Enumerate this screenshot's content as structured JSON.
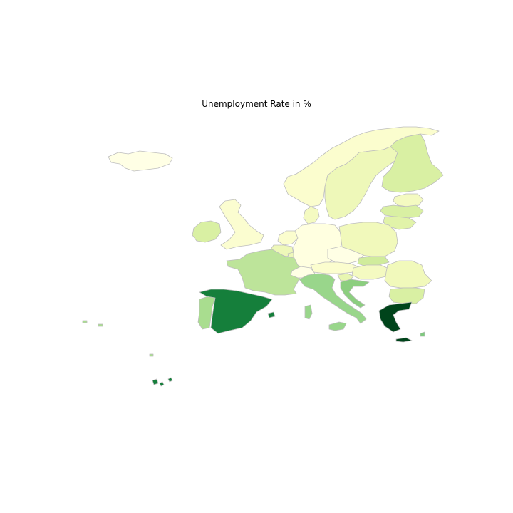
{
  "title": "Unemployment Rate in %",
  "map": {
    "type": "choropleth",
    "colormap": "YlGn",
    "border_color": "#bdbdbd",
    "regions": [
      {
        "name": "Iceland",
        "color": "#ffffe5"
      },
      {
        "name": "Norway",
        "color": "#fbfdce"
      },
      {
        "name": "Sweden",
        "color": "#eef8b9"
      },
      {
        "name": "Finland",
        "color": "#d9f0a3"
      },
      {
        "name": "Estonia",
        "color": "#f4fac1"
      },
      {
        "name": "Latvia",
        "color": "#d9f0a3"
      },
      {
        "name": "Lithuania",
        "color": "#e1f3a9"
      },
      {
        "name": "Ireland",
        "color": "#d9f0a3"
      },
      {
        "name": "United Kingdom",
        "color": "#fbfdd0"
      },
      {
        "name": "Denmark",
        "color": "#f4fac1"
      },
      {
        "name": "Netherlands",
        "color": "#fbfdce"
      },
      {
        "name": "Belgium",
        "color": "#eef8b9"
      },
      {
        "name": "Luxembourg",
        "color": "#eef8b9"
      },
      {
        "name": "Germany",
        "color": "#ffffe0"
      },
      {
        "name": "Poland",
        "color": "#f1f9bb"
      },
      {
        "name": "Czechia",
        "color": "#ffffe5"
      },
      {
        "name": "Slovakia",
        "color": "#d0ec9c"
      },
      {
        "name": "Austria",
        "color": "#fbfdce"
      },
      {
        "name": "Switzerland",
        "color": "#ffffe5"
      },
      {
        "name": "Hungary",
        "color": "#f4fac1"
      },
      {
        "name": "Slovenia",
        "color": "#e8f6b1"
      },
      {
        "name": "Croatia",
        "color": "#8cce7f"
      },
      {
        "name": "Romania",
        "color": "#f1f9bb"
      },
      {
        "name": "Bulgaria",
        "color": "#d9f0a3"
      },
      {
        "name": "France",
        "color": "#bde49a"
      },
      {
        "name": "Italy",
        "color": "#99d68b"
      },
      {
        "name": "Portugal",
        "color": "#a9dd8f"
      },
      {
        "name": "Spain",
        "color": "#157f3b"
      },
      {
        "name": "Greece",
        "color": "#00441b"
      },
      {
        "name": "Cyprus",
        "color": "#7fc97f"
      }
    ]
  }
}
